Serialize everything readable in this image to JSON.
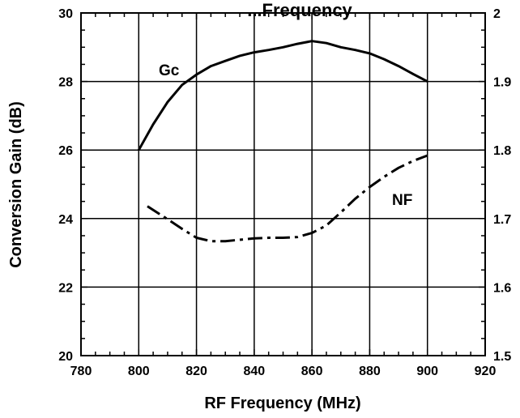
{
  "chart_data": {
    "type": "line",
    "title": "...Frequency",
    "xlabel": "RF Frequency (MHz)",
    "ylabel": "Conversion Gain (dB)",
    "y2label": "",
    "xlim": [
      780,
      920
    ],
    "ylim": [
      20,
      30
    ],
    "y2lim": [
      1.5,
      2.0
    ],
    "x_ticks": [
      "780",
      "800",
      "820",
      "840",
      "860",
      "880",
      "900",
      "920"
    ],
    "y_ticks": [
      "20",
      "22",
      "24",
      "26",
      "28",
      "30"
    ],
    "y2_ticks": [
      "1.5",
      "1.6",
      "1.7",
      "1.8",
      "1.9",
      "2"
    ],
    "grid": true,
    "series": [
      {
        "name": "Gc",
        "axis": "left",
        "style": "solid",
        "x": [
          800,
          805,
          810,
          815,
          820,
          825,
          830,
          835,
          840,
          845,
          850,
          855,
          860,
          865,
          870,
          875,
          880,
          885,
          890,
          895,
          900
        ],
        "y": [
          26.0,
          26.75,
          27.4,
          27.9,
          28.2,
          28.45,
          28.6,
          28.75,
          28.85,
          28.92,
          29.0,
          29.1,
          29.18,
          29.12,
          29.0,
          28.92,
          28.82,
          28.65,
          28.45,
          28.22,
          28.0
        ]
      },
      {
        "name": "NF",
        "axis": "right",
        "style": "dashdot",
        "x": [
          803,
          810,
          815,
          820,
          825,
          830,
          835,
          840,
          845,
          850,
          855,
          860,
          865,
          870,
          875,
          880,
          885,
          890,
          895,
          900
        ],
        "y": [
          1.718,
          1.699,
          1.685,
          1.672,
          1.667,
          1.667,
          1.669,
          1.671,
          1.672,
          1.672,
          1.673,
          1.679,
          1.69,
          1.709,
          1.729,
          1.746,
          1.761,
          1.774,
          1.784,
          1.792
        ]
      }
    ]
  }
}
